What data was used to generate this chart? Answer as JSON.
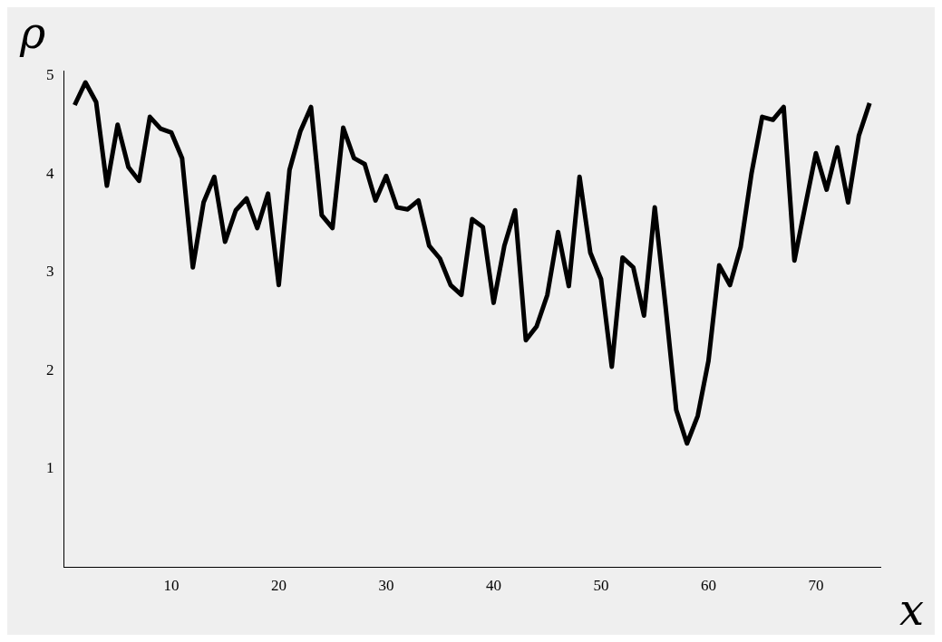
{
  "chart_data": {
    "type": "line",
    "xlabel": "x",
    "ylabel": "ρ",
    "x": [
      1,
      2,
      3,
      4,
      5,
      6,
      7,
      8,
      9,
      10,
      11,
      12,
      13,
      14,
      15,
      16,
      17,
      18,
      19,
      20,
      21,
      22,
      23,
      24,
      25,
      26,
      27,
      28,
      29,
      30,
      31,
      32,
      33,
      34,
      35,
      36,
      37,
      38,
      39,
      40,
      41,
      42,
      43,
      44,
      45,
      46,
      47,
      48,
      49,
      50,
      51,
      52,
      53,
      54,
      55,
      56,
      57,
      58,
      59,
      60,
      61,
      62,
      63,
      64,
      65,
      66,
      67,
      68,
      69,
      70,
      71,
      72,
      73,
      74,
      75
    ],
    "series": [
      {
        "color": "#000000",
        "values": [
          4.7,
          4.93,
          4.73,
          3.88,
          4.5,
          4.07,
          3.93,
          4.58,
          4.46,
          4.42,
          4.16,
          3.05,
          3.71,
          3.97,
          3.31,
          3.63,
          3.75,
          3.45,
          3.8,
          2.87,
          4.04,
          4.43,
          4.68,
          3.58,
          3.45,
          4.47,
          4.16,
          4.1,
          3.73,
          3.98,
          3.66,
          3.64,
          3.73,
          3.27,
          3.14,
          2.87,
          2.77,
          3.54,
          3.46,
          2.69,
          3.27,
          3.63,
          2.31,
          2.45,
          2.77,
          3.41,
          2.86,
          3.97,
          3.2,
          2.93,
          2.04,
          3.15,
          3.05,
          2.56,
          3.66,
          2.66,
          1.6,
          1.26,
          1.54,
          2.1,
          3.07,
          2.87,
          3.26,
          4.0,
          4.58,
          4.55,
          4.68,
          3.12,
          3.67,
          4.21,
          3.84,
          4.27,
          3.71,
          4.39,
          4.72
        ]
      }
    ],
    "xlim": [
      0,
      76
    ],
    "ylim": [
      0,
      5.05
    ],
    "xticks": [
      10,
      20,
      30,
      40,
      50,
      60,
      70
    ],
    "yticks": [
      1,
      2,
      3,
      4,
      5
    ],
    "grid": false,
    "legend": false,
    "marker": "none",
    "line_style": "solid"
  }
}
